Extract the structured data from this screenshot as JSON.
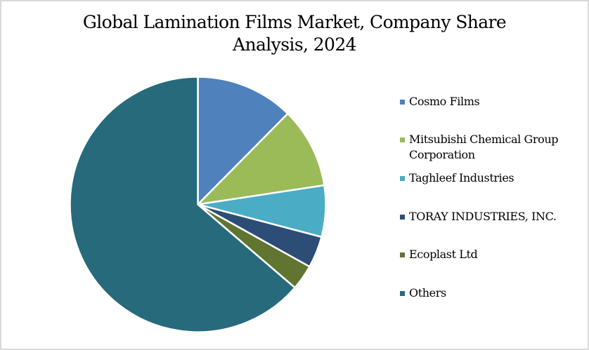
{
  "chart_data": {
    "type": "pie",
    "title": "Global Lamination Films Market, Company Share Analysis, 2024",
    "title_lines": [
      "Global Lamination Films Market, Company Share",
      "Analysis, 2024"
    ],
    "categories": [
      "Cosmo Films",
      "Mitsubishi Chemical Group Corporation",
      "Taghleef Industries",
      "TORAY INDUSTRIES, INC.",
      "Ecoplast Ltd",
      "Others"
    ],
    "values": [
      12.4,
      10.2,
      6.5,
      4.0,
      3.2,
      63.7
    ],
    "unit": "%",
    "colors": [
      "#4f81bd",
      "#9bbb59",
      "#4bacc6",
      "#2c4d75",
      "#5f7530",
      "#276a7c"
    ],
    "start_angle_deg": 0,
    "direction": "clockwise",
    "legend_position": "right",
    "data_labels": false
  },
  "legend": {
    "items": [
      {
        "label": "Cosmo Films",
        "color": "#4f81bd"
      },
      {
        "label": "Mitsubishi Chemical Group Corporation",
        "color": "#9bbb59"
      },
      {
        "label": "Taghleef Industries",
        "color": "#4bacc6"
      },
      {
        "label": "TORAY INDUSTRIES, INC.",
        "color": "#2c4d75"
      },
      {
        "label": "Ecoplast Ltd",
        "color": "#5f7530"
      },
      {
        "label": "Others",
        "color": "#276a7c"
      }
    ]
  }
}
